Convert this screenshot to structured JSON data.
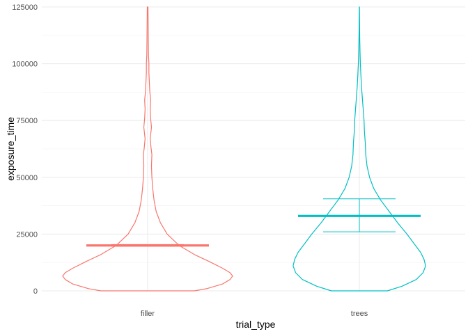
{
  "chart_data": {
    "type": "violin",
    "xlabel": "trial_type",
    "ylabel": "exposure_time",
    "categories": [
      "filler",
      "trees"
    ],
    "ylim": [
      0,
      125000
    ],
    "y_ticks": [
      0,
      25000,
      50000,
      75000,
      100000,
      125000
    ],
    "y_tick_labels": [
      "0",
      "25000",
      "50000",
      "75000",
      "100000",
      "125000"
    ],
    "grid": true,
    "legend": "none",
    "series": [
      {
        "category": "filler",
        "color": "#F8766D",
        "mean": 20000,
        "ci": [
          19600,
          20400
        ],
        "density": [
          [
            0,
            0.55
          ],
          [
            1000,
            0.7
          ],
          [
            3000,
            0.88
          ],
          [
            5000,
            0.97
          ],
          [
            6500,
            1.0
          ],
          [
            8000,
            0.97
          ],
          [
            10000,
            0.88
          ],
          [
            13000,
            0.72
          ],
          [
            16000,
            0.55
          ],
          [
            20000,
            0.37
          ],
          [
            25000,
            0.23
          ],
          [
            30000,
            0.15
          ],
          [
            35000,
            0.1
          ],
          [
            40000,
            0.075
          ],
          [
            45000,
            0.06
          ],
          [
            50000,
            0.05
          ],
          [
            55000,
            0.045
          ],
          [
            60000,
            0.05
          ],
          [
            63000,
            0.04
          ],
          [
            67000,
            0.03
          ],
          [
            72000,
            0.045
          ],
          [
            76000,
            0.035
          ],
          [
            80000,
            0.03
          ],
          [
            84000,
            0.035
          ],
          [
            88000,
            0.025
          ],
          [
            92000,
            0.02
          ],
          [
            96000,
            0.015
          ],
          [
            100000,
            0.015
          ],
          [
            104000,
            0.01
          ],
          [
            110000,
            0.008
          ],
          [
            118000,
            0.006
          ],
          [
            125000,
            0.004
          ]
        ]
      },
      {
        "category": "trees",
        "color": "#00BFC4",
        "mean": 33000,
        "ci": [
          26000,
          40500
        ],
        "density": [
          [
            0,
            0.33
          ],
          [
            2000,
            0.5
          ],
          [
            5000,
            0.67
          ],
          [
            8000,
            0.75
          ],
          [
            11000,
            0.78
          ],
          [
            14000,
            0.76
          ],
          [
            17000,
            0.72
          ],
          [
            20000,
            0.66
          ],
          [
            25000,
            0.56
          ],
          [
            30000,
            0.45
          ],
          [
            35000,
            0.35
          ],
          [
            40000,
            0.25
          ],
          [
            45000,
            0.17
          ],
          [
            50000,
            0.12
          ],
          [
            55000,
            0.09
          ],
          [
            60000,
            0.075
          ],
          [
            65000,
            0.07
          ],
          [
            70000,
            0.06
          ],
          [
            75000,
            0.055
          ],
          [
            80000,
            0.045
          ],
          [
            85000,
            0.035
          ],
          [
            90000,
            0.025
          ],
          [
            95000,
            0.018
          ],
          [
            100000,
            0.012
          ],
          [
            105000,
            0.008
          ],
          [
            110000,
            0.005
          ],
          [
            115000,
            0.003
          ],
          [
            120000,
            0.002
          ],
          [
            125000,
            0.001
          ]
        ]
      }
    ]
  }
}
